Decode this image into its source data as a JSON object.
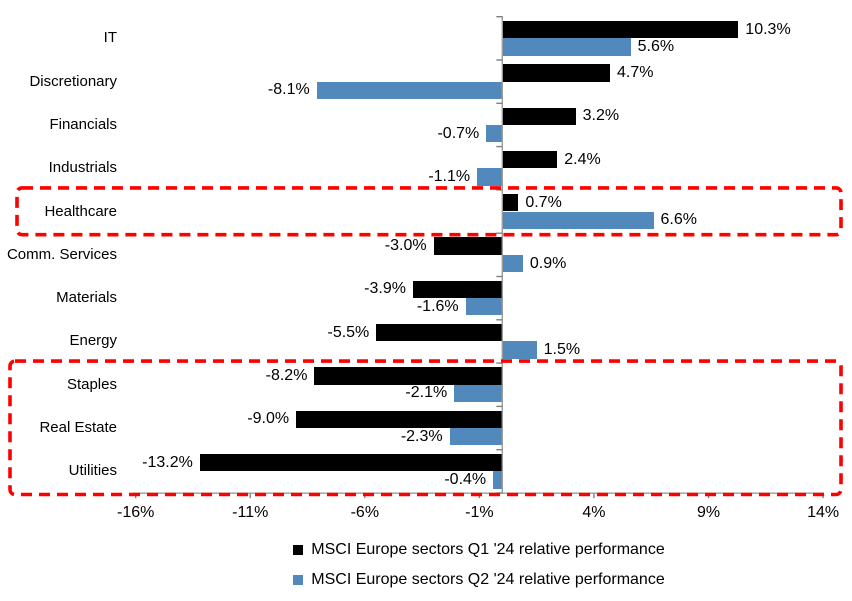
{
  "chart_data": {
    "type": "bar",
    "orientation": "horizontal",
    "title": "",
    "xlabel": "",
    "ylabel": "",
    "categories": [
      "IT",
      "Discretionary",
      "Financials",
      "Industrials",
      "Healthcare",
      "Comm. Services",
      "Materials",
      "Energy",
      "Staples",
      "Real Estate",
      "Utilities"
    ],
    "series": [
      {
        "name": "MSCI Europe sectors Q1 '24 relative performance",
        "color": "#000000",
        "values": [
          10.3,
          4.7,
          3.2,
          2.4,
          0.7,
          -3.0,
          -3.9,
          -5.5,
          -8.2,
          -9.0,
          -13.2
        ],
        "labels": [
          "10.3%",
          "4.7%",
          "3.2%",
          "2.4%",
          "0.7%",
          "-3.0%",
          "-3.9%",
          "-5.5%",
          "-8.2%",
          "-9.0%",
          "-13.2%"
        ]
      },
      {
        "name": "MSCI Europe sectors Q2 '24 relative performance",
        "color": "#5289BD",
        "values": [
          5.6,
          -8.1,
          -0.7,
          -1.1,
          6.6,
          0.9,
          -1.6,
          1.5,
          -2.1,
          -2.3,
          -0.4
        ],
        "labels": [
          "5.6%",
          "-8.1%",
          "-0.7%",
          "-1.1%",
          "6.6%",
          "0.9%",
          "-1.6%",
          "1.5%",
          "-2.1%",
          "-2.3%",
          "-0.4%"
        ]
      }
    ],
    "x_ticks": [
      "-16%",
      "-11%",
      "-6%",
      "-1%",
      "4%",
      "9%",
      "14%"
    ],
    "x_tick_values": [
      -16,
      -11,
      -6,
      -1,
      4,
      9,
      14
    ],
    "xlim": [
      -16,
      14
    ],
    "grid": false,
    "legend_position": "bottom",
    "highlight_boxes": [
      {
        "name": "healthcare-highlight",
        "categories": [
          "Healthcare"
        ],
        "from_index": 4,
        "to_index": 4
      },
      {
        "name": "defensives-highlight",
        "categories": [
          "Staples",
          "Real Estate",
          "Utilities"
        ],
        "from_index": 8,
        "to_index": 10
      }
    ],
    "colors": {
      "q1_bar": "#000000",
      "q2_bar": "#5289BD",
      "highlight_border": "#FF0000",
      "axis_line": "#9B9B9B",
      "tick_mark": "#808080",
      "text": "#000000",
      "background": "#FFFFFF"
    }
  }
}
